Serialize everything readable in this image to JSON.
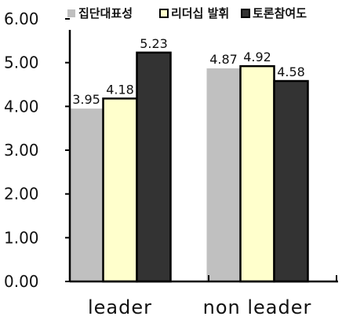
{
  "chart_data": {
    "type": "bar",
    "categories": [
      "leader",
      "non leader"
    ],
    "series": [
      {
        "name": "집단대표성",
        "values": [
          3.95,
          4.87
        ],
        "color": "#c0c0c0"
      },
      {
        "name": "리더십 발휘",
        "values": [
          4.18,
          4.92
        ],
        "color": "#ffffcc"
      },
      {
        "name": "토론참여도",
        "values": [
          5.23,
          4.58
        ],
        "color": "#333333"
      }
    ],
    "ylim": [
      0,
      6
    ],
    "yticks": [
      "0.00",
      "1.00",
      "2.00",
      "3.00",
      "4.00",
      "5.00",
      "6.00"
    ],
    "value_labels": [
      [
        "3.95",
        "4.18",
        "5.23"
      ],
      [
        "4.87",
        "4.92",
        "4.58"
      ]
    ],
    "legend_position": "top",
    "title": "",
    "xlabel": "",
    "ylabel": ""
  }
}
